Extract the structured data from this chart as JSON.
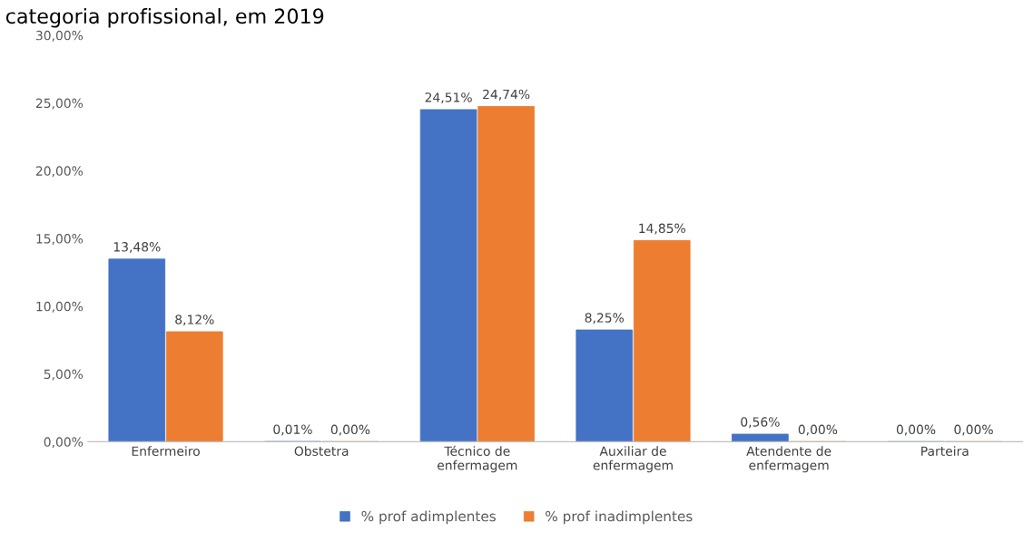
{
  "chart_data": {
    "type": "bar",
    "title": "categoria profissional, em 2019",
    "categories": [
      "Enfermeiro",
      "Obstetra",
      "Técnico de\nenfermagem",
      "Auxiliar de\nenfermagem",
      "Atendente de\nenfermagem",
      "Parteira"
    ],
    "series": [
      {
        "name": "% prof adimplentes",
        "color": "#4472c4",
        "values": [
          13.48,
          0.01,
          24.51,
          8.25,
          0.56,
          0.0
        ],
        "value_labels": [
          "13,48%",
          "0,01%",
          "24,51%",
          "8,25%",
          "0,56%",
          "0,00%"
        ]
      },
      {
        "name": "% prof inadimplentes",
        "color": "#ed7d31",
        "values": [
          8.12,
          0.0,
          24.74,
          14.85,
          0.0,
          0.0
        ],
        "value_labels": [
          "8,12%",
          "0,00%",
          "24,74%",
          "14,85%",
          "0,00%",
          "0,00%"
        ]
      }
    ],
    "ylim": [
      0,
      30
    ],
    "yticks": [
      {
        "value": 0,
        "label": "0,00%"
      },
      {
        "value": 5,
        "label": "5,00%"
      },
      {
        "value": 10,
        "label": "10,00%"
      },
      {
        "value": 15,
        "label": "15,00%"
      },
      {
        "value": 20,
        "label": "20,00%"
      },
      {
        "value": 25,
        "label": "25,00%"
      },
      {
        "value": 30,
        "label": "30,00%"
      }
    ],
    "grid": false,
    "legend": "bottom"
  }
}
